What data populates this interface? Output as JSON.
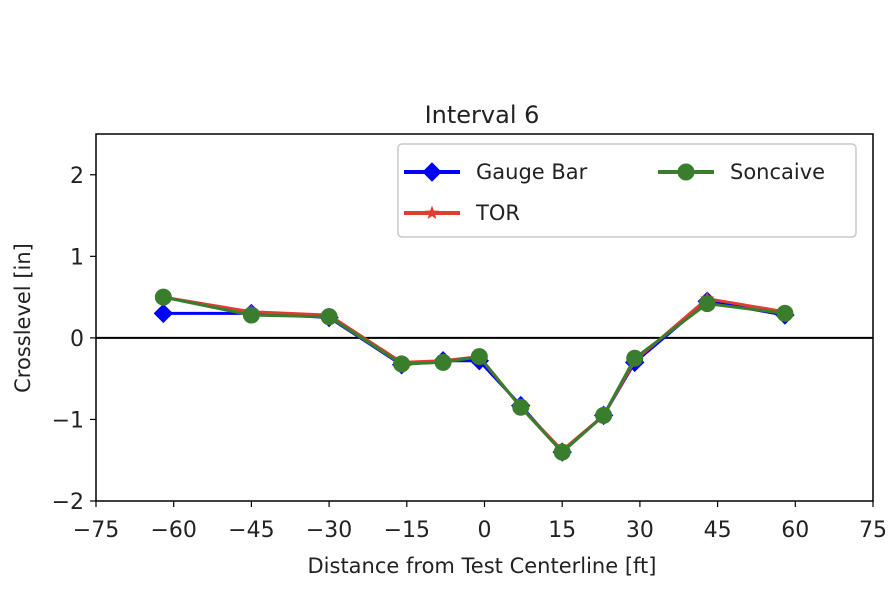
{
  "chart_data": {
    "type": "line",
    "title": "Interval 6",
    "xlabel": "Distance from Test Centerline [ft]",
    "ylabel": "Crosslevel [in]",
    "xlim": [
      -75,
      75
    ],
    "ylim": [
      -2,
      2.5
    ],
    "xticks": [
      "−75",
      "−60",
      "−45",
      "−30",
      "−15",
      "0",
      "15",
      "30",
      "45",
      "60",
      "75"
    ],
    "xtick_values": [
      -75,
      -60,
      -45,
      -30,
      -15,
      0,
      15,
      30,
      45,
      60,
      75
    ],
    "yticks": [
      "−2",
      "−1",
      "0",
      "1",
      "2"
    ],
    "ytick_values": [
      -2,
      -1,
      0,
      1,
      2
    ],
    "zero_line": true,
    "grid": false,
    "legend_position": "top-right",
    "series": [
      {
        "name": "Gauge Bar",
        "color": "#0000ff",
        "marker": "diamond",
        "x": [
          -62,
          -45,
          -30,
          -16,
          -8,
          -1,
          7,
          15,
          23,
          29,
          43,
          58
        ],
        "y": [
          0.3,
          0.3,
          0.25,
          -0.33,
          -0.28,
          -0.28,
          -0.83,
          -1.4,
          -0.95,
          -0.3,
          0.45,
          0.28
        ]
      },
      {
        "name": "TOR",
        "color": "#e03c31",
        "marker": "star",
        "x": [
          -62,
          -45,
          -30,
          -16,
          -8,
          -1,
          7,
          15,
          23,
          29,
          43,
          58
        ],
        "y": [
          0.5,
          0.32,
          0.28,
          -0.3,
          -0.28,
          -0.23,
          -0.85,
          -1.38,
          -0.95,
          -0.28,
          0.48,
          0.32
        ]
      },
      {
        "name": "Soncaive",
        "color": "#3a7d2c",
        "marker": "circle",
        "x": [
          -62,
          -45,
          -30,
          -16,
          -8,
          -1,
          7,
          15,
          23,
          29,
          43,
          58
        ],
        "y": [
          0.5,
          0.28,
          0.26,
          -0.32,
          -0.3,
          -0.23,
          -0.85,
          -1.4,
          -0.95,
          -0.25,
          0.42,
          0.3
        ]
      }
    ]
  }
}
